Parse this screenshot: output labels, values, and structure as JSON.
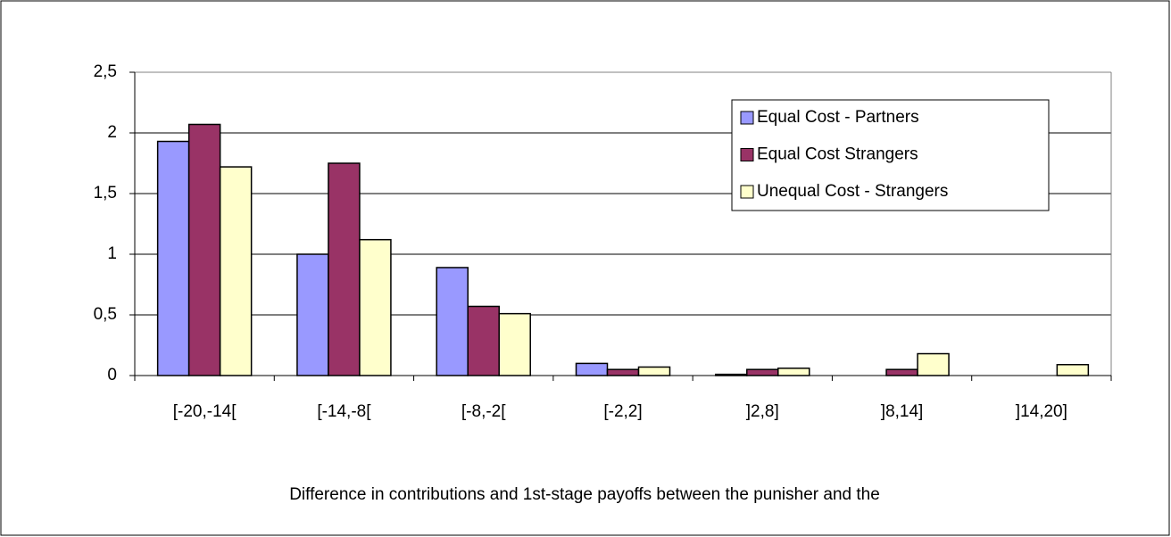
{
  "chart_data": {
    "type": "bar",
    "x_label": "Difference in contributions and 1st-stage payoffs between the punisher and the",
    "categories": [
      "[-20,-14[",
      "[-14,-8[",
      "[-8,-2[",
      "[-2,2]",
      "]2,8]",
      "]8,14]",
      "]14,20]"
    ],
    "series": [
      {
        "name": "Equal Cost - Partners",
        "color": "#9999ff",
        "values": [
          1.93,
          1.0,
          0.89,
          0.1,
          0.01,
          0,
          0
        ]
      },
      {
        "name": "Equal Cost Strangers",
        "color": "#993366",
        "values": [
          2.07,
          1.75,
          0.57,
          0.05,
          0.05,
          0.05,
          0
        ]
      },
      {
        "name": "Unequal Cost - Strangers",
        "color": "#ffffcc",
        "values": [
          1.72,
          1.12,
          0.51,
          0.07,
          0.06,
          0.18,
          0.09
        ]
      }
    ],
    "ylim": [
      0,
      2.5
    ],
    "yticks": [
      0,
      {
        "value": 0.5,
        "label": "0,5"
      },
      1,
      {
        "value": 1.5,
        "label": "1,5"
      },
      2,
      {
        "value": 2.5,
        "label": "2,5"
      }
    ],
    "grid": true,
    "legend": "upper right"
  }
}
